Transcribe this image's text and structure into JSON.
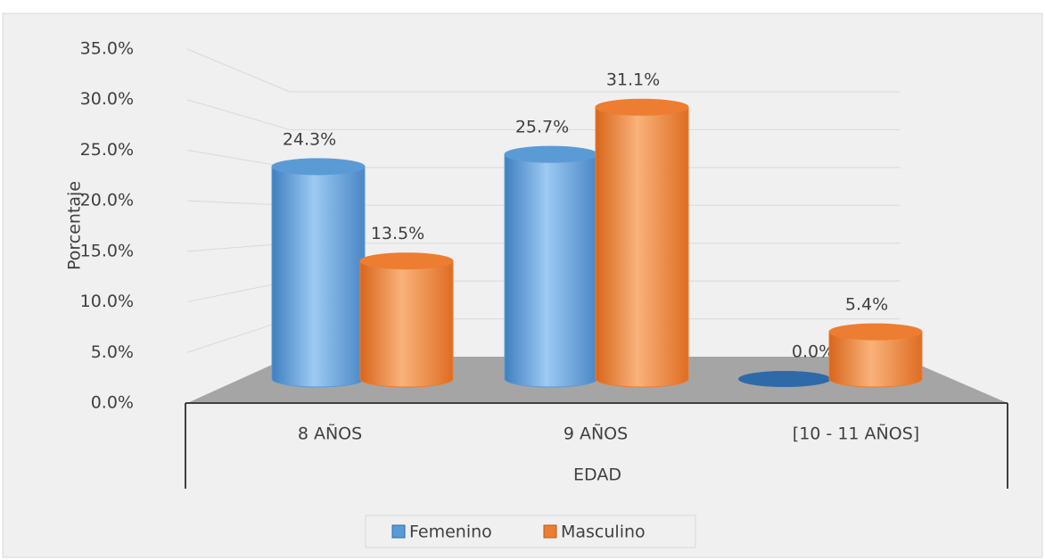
{
  "chart_data": {
    "type": "bar3d",
    "y_axis_label": "Porcentaje",
    "x_axis_label": "EDAD",
    "categories": [
      "8 AÑOS",
      "9 AÑOS",
      "[10 - 11 AÑOS]"
    ],
    "series": [
      {
        "name": "Femenino",
        "color": "#5b9bd5",
        "values": [
          24.3,
          25.7,
          0.0
        ],
        "value_labels": [
          "24.3%",
          "25.7%",
          "0.0%"
        ]
      },
      {
        "name": "Masculino",
        "color": "#ed7d31",
        "values": [
          13.5,
          31.1,
          5.4
        ],
        "value_labels": [
          "13.5%",
          "31.1%",
          "5.4%"
        ]
      }
    ],
    "ylim": [
      0,
      35
    ],
    "yticks": [
      {
        "value": 0,
        "label": "0.0%"
      },
      {
        "value": 5,
        "label": "5.0%"
      },
      {
        "value": 10,
        "label": "10.0%"
      },
      {
        "value": 15,
        "label": "15.0%"
      },
      {
        "value": 20,
        "label": "20.0%"
      },
      {
        "value": 25,
        "label": "25.0%"
      },
      {
        "value": 30,
        "label": "30.0%"
      },
      {
        "value": 35,
        "label": "35.0%"
      }
    ],
    "grid": true,
    "legend": "bottom"
  }
}
